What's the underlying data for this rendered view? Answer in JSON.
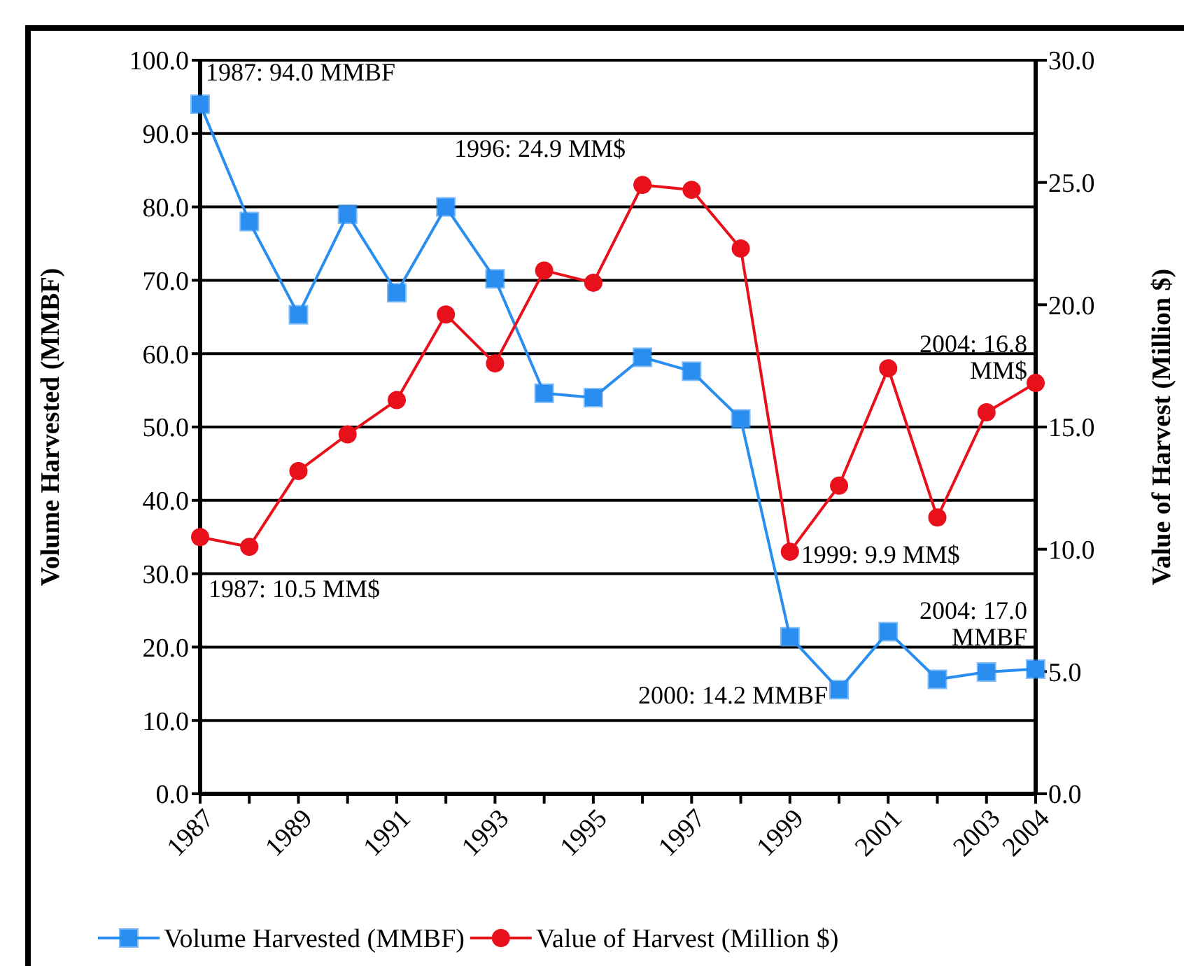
{
  "chart_data": {
    "type": "line",
    "ylabel": "Volume Harvested (MMBF)",
    "y2label": "Value of Harvest (Million $)",
    "x": [
      1987,
      1988,
      1989,
      1990,
      1991,
      1992,
      1993,
      1994,
      1995,
      1996,
      1997,
      1998,
      1999,
      2000,
      2001,
      2002,
      2003,
      2004
    ],
    "series": [
      {
        "name": "Volume Harvested (MMBF)",
        "color": "#2a8ef0",
        "marker": "square",
        "values": [
          94.0,
          78.0,
          65.3,
          79.0,
          68.3,
          80.0,
          70.2,
          54.6,
          54.0,
          59.5,
          57.6,
          51.1,
          21.4,
          14.2,
          22.1,
          15.6,
          16.6,
          17.0
        ]
      },
      {
        "name": "Value of Harvest (Million $)",
        "color": "#e8101a",
        "marker": "circle",
        "axis": "y2",
        "values": [
          10.5,
          10.1,
          13.2,
          14.7,
          16.1,
          19.6,
          17.6,
          21.4,
          20.9,
          24.9,
          24.7,
          22.3,
          9.9,
          12.6,
          17.4,
          11.3,
          15.6,
          16.8
        ]
      }
    ],
    "xlim": [
      1987,
      2004
    ],
    "xticks": [
      1987,
      {
        "value": 1988,
        "label": null
      },
      1989,
      {
        "value": 1990,
        "label": null
      },
      1991,
      {
        "value": 1992,
        "label": null
      },
      1993,
      {
        "value": 1994,
        "label": null
      },
      1995,
      {
        "value": 1996,
        "label": null
      },
      1997,
      {
        "value": 1998,
        "label": null
      },
      1999,
      {
        "value": 2000,
        "label": null
      },
      2001,
      {
        "value": 2002,
        "label": null
      },
      2003,
      2004
    ],
    "ylim": [
      0,
      100
    ],
    "yticks": [
      {
        "value": 0,
        "label": "0.0"
      },
      {
        "value": 10,
        "label": "10.0"
      },
      {
        "value": 20,
        "label": "20.0"
      },
      {
        "value": 30,
        "label": "30.0"
      },
      {
        "value": 40,
        "label": "40.0"
      },
      {
        "value": 50,
        "label": "50.0"
      },
      {
        "value": 60,
        "label": "60.0"
      },
      {
        "value": 70,
        "label": "70.0"
      },
      {
        "value": 80,
        "label": "80.0"
      },
      {
        "value": 90,
        "label": "90.0"
      },
      {
        "value": 100,
        "label": "100.0"
      }
    ],
    "y2lim": [
      0,
      30
    ],
    "y2ticks": [
      {
        "value": 0,
        "label": "0.0"
      },
      {
        "value": 5,
        "label": "5.0"
      },
      {
        "value": 10,
        "label": "10.0"
      },
      {
        "value": 15,
        "label": "15.0"
      },
      {
        "value": 20,
        "label": "20.0"
      },
      {
        "value": 25,
        "label": "25.0"
      },
      {
        "value": 30,
        "label": "30.0"
      }
    ],
    "grid": "y",
    "legend": "bottom",
    "line_style": "solid",
    "annotations": [
      {
        "text": "1987: 94.0 MMBF",
        "x": 1987,
        "y": 94.0
      },
      {
        "text": "1987: 10.5 MM$",
        "x": 1987,
        "y": 35.0
      },
      {
        "text": "1996: 24.9 MM$",
        "x": 1996,
        "y": 83.0
      },
      {
        "text": "1999: 9.9 MM$",
        "x": 1999,
        "y": 33.0
      },
      {
        "text": "2000: 14.2 MMBF",
        "x": 2000,
        "y": 14.2
      },
      {
        "text": "2004: 16.8 MM$",
        "x": 2004,
        "y": 56.0
      },
      {
        "text": "2004: 17.0 MMBF",
        "x": 2004,
        "y": 17.0
      }
    ]
  }
}
